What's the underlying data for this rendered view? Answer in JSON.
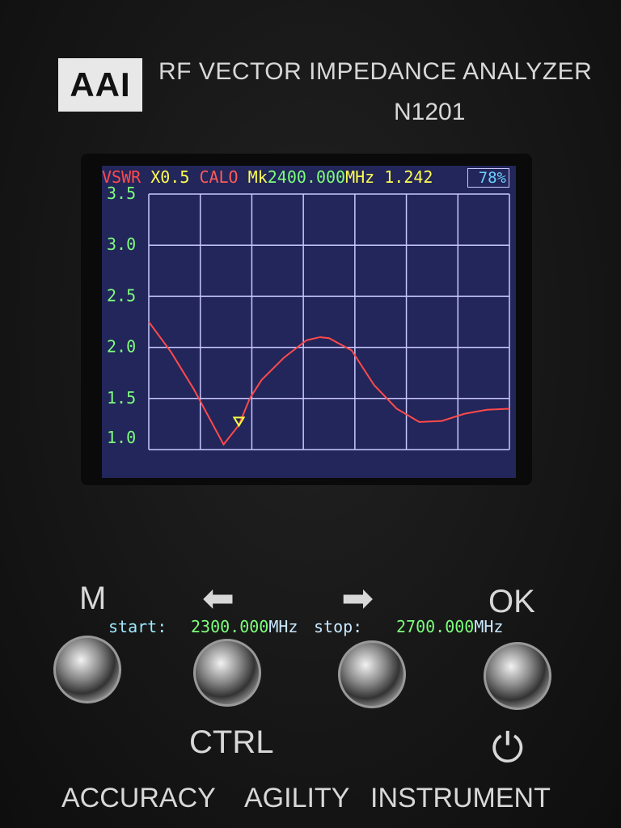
{
  "device": {
    "logo": "AAI",
    "title": "RF VECTOR IMPEDANCE ANALYZER",
    "model": "N1201"
  },
  "header": {
    "mode": "VSWR",
    "scale": "X0.5",
    "cal": "CALO",
    "marker_prefix": "Mk",
    "marker_freq": "2400.000",
    "marker_unit": "MHz",
    "marker_value": "1.242",
    "battery": "78%"
  },
  "footer": {
    "start_label": "start:",
    "start_value": "2300.000",
    "start_unit": "MHz",
    "stop_label": "stop:",
    "stop_value": "2700.000",
    "stop_unit": "MHz"
  },
  "buttons": {
    "m": "M",
    "ok": "OK",
    "ctrl": "CTRL"
  },
  "slogan": [
    "ACCURACY",
    "AGILITY",
    "INSTRUMENT"
  ],
  "colors": {
    "screen": "#23265a",
    "grid": "#c8c8ff",
    "trace": "#ff4a4a",
    "marker": "#ffff40",
    "tick_label": "#7dff7d"
  },
  "chart_data": {
    "type": "line",
    "xlim": [
      2300,
      2700
    ],
    "ylim": [
      1.0,
      3.5
    ],
    "yticks": [
      "1.0",
      "1.5",
      "2.0",
      "2.5",
      "3.0",
      "3.5"
    ],
    "grid": true,
    "x": [
      2300,
      2325,
      2350,
      2375,
      2383,
      2400,
      2412,
      2425,
      2450,
      2475,
      2490,
      2500,
      2525,
      2550,
      2575,
      2600,
      2625,
      2650,
      2675,
      2700
    ],
    "values": [
      2.25,
      1.95,
      1.59,
      1.18,
      1.05,
      1.24,
      1.5,
      1.68,
      1.9,
      2.07,
      2.1,
      2.09,
      1.97,
      1.63,
      1.4,
      1.27,
      1.28,
      1.35,
      1.39,
      1.4
    ],
    "marker": {
      "x": 2400,
      "y": 1.242
    }
  }
}
